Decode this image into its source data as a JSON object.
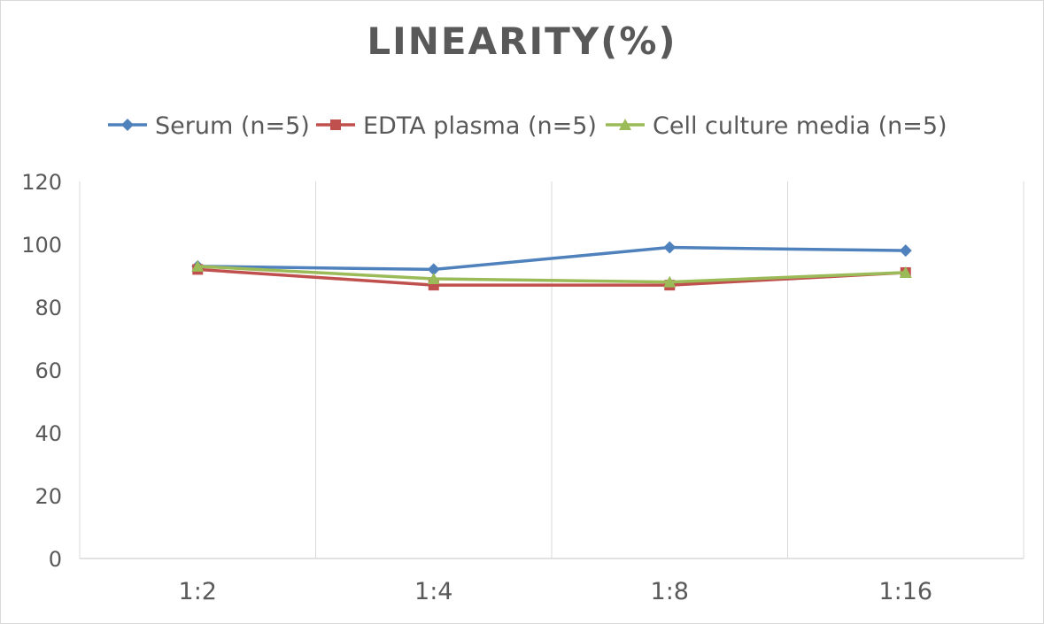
{
  "chart_data": {
    "type": "line",
    "title": "LINEARITY(%)",
    "xlabel": "",
    "ylabel": "",
    "categories": [
      "1:2",
      "1:4",
      "1:8",
      "1:16"
    ],
    "ylim": [
      0,
      120
    ],
    "yticks": [
      0,
      20,
      40,
      60,
      80,
      100,
      120
    ],
    "grid": "vertical",
    "legend_position": "top",
    "series": [
      {
        "name": "Serum (n=5)",
        "values": [
          93,
          92,
          99,
          98
        ],
        "color": "#4f81bd",
        "marker": "diamond"
      },
      {
        "name": "EDTA plasma (n=5)",
        "values": [
          92,
          87,
          87,
          91
        ],
        "color": "#c0504d",
        "marker": "square"
      },
      {
        "name": "Cell culture media (n=5)",
        "values": [
          93,
          89,
          88,
          91
        ],
        "color": "#9bbb59",
        "marker": "triangle"
      }
    ]
  }
}
